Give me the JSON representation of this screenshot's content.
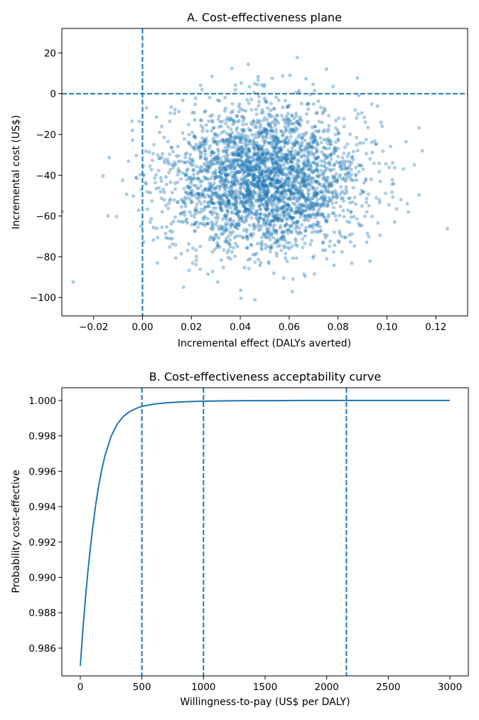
{
  "colors": {
    "series": "#1f77b4",
    "axes": "#000000",
    "background": "#ffffff"
  },
  "chart_data": [
    {
      "type": "scatter",
      "title": "A. Cost-effectiveness plane",
      "xlabel": "Incremental effect (DALYs averted)",
      "ylabel": "Incremental cost (US$)",
      "xlim": [
        -0.033,
        0.133
      ],
      "ylim": [
        -109,
        32
      ],
      "xticks": [
        -0.02,
        0.0,
        0.02,
        0.04,
        0.06,
        0.08,
        0.1,
        0.12
      ],
      "xtick_labels": [
        "−0.02",
        "0.00",
        "0.02",
        "0.04",
        "0.06",
        "0.08",
        "0.10",
        "0.12"
      ],
      "yticks": [
        -100,
        -80,
        -60,
        -40,
        -20,
        0,
        20
      ],
      "ytick_labels": [
        "−100",
        "−80",
        "−60",
        "−40",
        "−20",
        "0",
        "20"
      ],
      "grid": false,
      "reference_lines": {
        "x": [
          0.0
        ],
        "y": [
          0
        ]
      },
      "points": {
        "distribution": "bivariate-normal",
        "x_mean": 0.05,
        "x_sd": 0.02,
        "y_mean": -42,
        "y_sd": 18,
        "count": 3000
      }
    },
    {
      "type": "line",
      "title": "B. Cost-effectiveness acceptability curve",
      "xlabel": "Willingness-to-pay (US$ per DALY)",
      "ylabel": "Probability cost-effective",
      "xlim": [
        -150,
        3150
      ],
      "ylim": [
        0.98443,
        1.00072
      ],
      "xticks": [
        0,
        500,
        1000,
        1500,
        2000,
        2500,
        3000
      ],
      "xtick_labels": [
        "0",
        "500",
        "1000",
        "1500",
        "2000",
        "2500",
        "3000"
      ],
      "yticks": [
        0.986,
        0.988,
        0.99,
        0.992,
        0.994,
        0.996,
        0.998,
        1.0
      ],
      "ytick_labels": [
        "0.986",
        "0.988",
        "0.990",
        "0.992",
        "0.994",
        "0.996",
        "0.998",
        "1.000"
      ],
      "grid": false,
      "reference_lines": {
        "x": [
          500,
          1000,
          2160
        ]
      },
      "x": [
        0,
        20,
        40,
        60,
        80,
        100,
        125,
        150,
        175,
        200,
        250,
        300,
        350,
        400,
        450,
        500,
        600,
        700,
        800,
        900,
        1000,
        1200,
        1400,
        1600,
        1800,
        2000,
        2200,
        2500,
        2800,
        3000
      ],
      "y": [
        0.985,
        0.98695,
        0.98868,
        0.99021,
        0.99157,
        0.99278,
        0.99411,
        0.99521,
        0.99612,
        0.99687,
        0.99797,
        0.99867,
        0.9991,
        0.99937,
        0.99954,
        0.99967,
        0.9998,
        0.99987,
        0.99991,
        0.99994,
        0.99996,
        0.99998,
        0.99999,
        0.99999,
        1.0,
        1.0,
        1.0,
        1.0,
        1.0,
        1.0
      ]
    }
  ]
}
